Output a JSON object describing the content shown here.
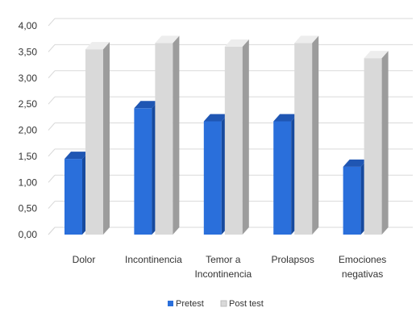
{
  "chart_data": {
    "type": "bar",
    "categories": [
      [
        "Dolor"
      ],
      [
        "Incontinencia"
      ],
      [
        "Temor a",
        "Incontinencia"
      ],
      [
        "Prolapsos"
      ],
      [
        "Emociones",
        "negativas"
      ]
    ],
    "series": [
      {
        "name": "Pretest",
        "values": [
          1.45,
          2.42,
          2.17,
          2.17,
          1.3
        ],
        "color": "#2a6fdb",
        "top_color": "#1f56b3",
        "side_color": "#174a9e"
      },
      {
        "name": "Post test",
        "values": [
          3.55,
          3.67,
          3.6,
          3.67,
          3.38
        ],
        "color": "#d9d9d9",
        "top_color": "#ededed",
        "side_color": "#9c9c9c"
      }
    ],
    "y_ticks": [
      "0,00",
      "0,50",
      "1,00",
      "1,50",
      "2,00",
      "2,50",
      "3,00",
      "3,50",
      "4,00"
    ],
    "ylim": [
      0,
      4
    ],
    "grid": true,
    "legend_position": "bottom-center",
    "bar_style": "3d-column"
  }
}
